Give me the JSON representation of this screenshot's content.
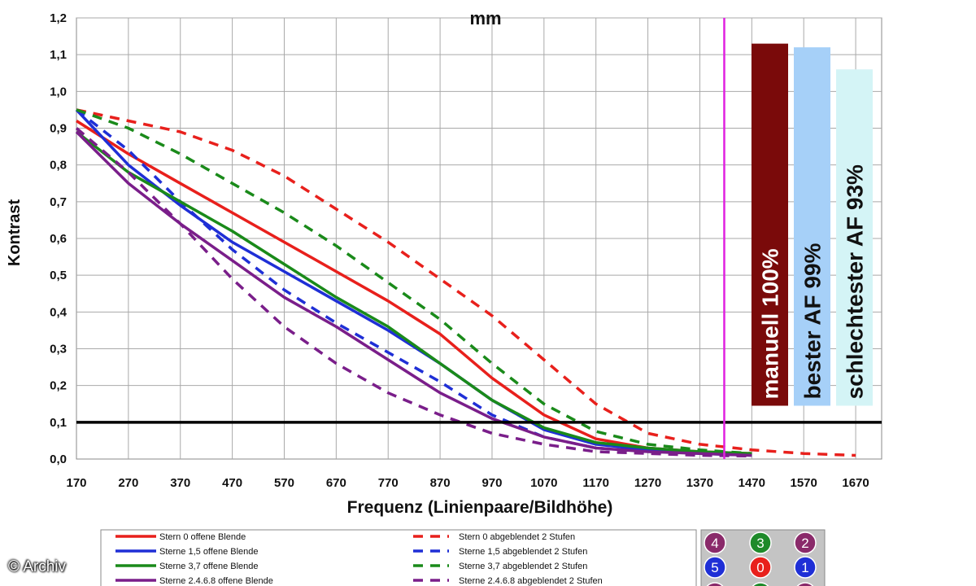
{
  "chart_data": {
    "type": "line",
    "title": "mm",
    "xlabel": "Frequenz (Linienpaare/Bildhöhe)",
    "ylabel": "Kontrast",
    "xlim": [
      170,
      1720
    ],
    "ylim": [
      0,
      1.2
    ],
    "x_ticks": [
      "170",
      "270",
      "370",
      "470",
      "570",
      "670",
      "770",
      "870",
      "970",
      "1070",
      "1170",
      "1270",
      "1370",
      "1470",
      "1570",
      "1670"
    ],
    "y_ticks": [
      "0,0",
      "0,1",
      "0,2",
      "0,3",
      "0,4",
      "0,5",
      "0,6",
      "0,7",
      "0,8",
      "0,9",
      "1,0",
      "1,1",
      "1,2"
    ],
    "grid": true,
    "threshold": {
      "y": 0.1,
      "color": "#000000"
    },
    "marker_line": {
      "x": 1417,
      "color": "#e020e0"
    },
    "colors": {
      "red": "#e8201c",
      "blue": "#1f2fd6",
      "green": "#1a8a1a",
      "purple": "#7a1e8a"
    },
    "series": [
      {
        "name": "Stern 0 offene Blende",
        "color": "#e8201c",
        "dashed": false,
        "x": [
          170,
          270,
          370,
          470,
          570,
          670,
          770,
          870,
          970,
          1070,
          1170,
          1270,
          1370,
          1470
        ],
        "y": [
          0.92,
          0.83,
          0.75,
          0.67,
          0.59,
          0.51,
          0.43,
          0.34,
          0.22,
          0.12,
          0.055,
          0.03,
          0.02,
          0.015
        ]
      },
      {
        "name": "Stern 0 abgeblendet 2 Stufen",
        "color": "#e8201c",
        "dashed": true,
        "x": [
          170,
          270,
          370,
          470,
          570,
          670,
          770,
          870,
          970,
          1070,
          1170,
          1270,
          1370,
          1470,
          1570,
          1670
        ],
        "y": [
          0.95,
          0.92,
          0.89,
          0.84,
          0.77,
          0.68,
          0.59,
          0.49,
          0.39,
          0.27,
          0.15,
          0.07,
          0.04,
          0.025,
          0.015,
          0.01
        ]
      },
      {
        "name": "Sterne 1,5 offene Blende",
        "color": "#1f2fd6",
        "dashed": false,
        "x": [
          170,
          270,
          370,
          470,
          570,
          670,
          770,
          870,
          970,
          1070,
          1170,
          1270,
          1370,
          1470
        ],
        "y": [
          0.95,
          0.8,
          0.69,
          0.59,
          0.51,
          0.43,
          0.35,
          0.26,
          0.16,
          0.08,
          0.04,
          0.025,
          0.015,
          0.01
        ]
      },
      {
        "name": "Sterne 1,5 abgeblendet 2 Stufen",
        "color": "#1f2fd6",
        "dashed": true,
        "x": [
          170,
          270,
          370,
          470,
          570,
          670,
          770,
          870,
          970,
          1070,
          1170,
          1270,
          1370,
          1470
        ],
        "y": [
          0.95,
          0.84,
          0.7,
          0.57,
          0.46,
          0.37,
          0.29,
          0.21,
          0.12,
          0.06,
          0.03,
          0.02,
          0.015,
          0.01
        ]
      },
      {
        "name": "Sterne 3,7 offene Blende",
        "color": "#1a8a1a",
        "dashed": false,
        "x": [
          170,
          270,
          370,
          470,
          570,
          670,
          770,
          870,
          970,
          1070,
          1170,
          1270,
          1370,
          1470
        ],
        "y": [
          0.89,
          0.78,
          0.7,
          0.62,
          0.53,
          0.44,
          0.36,
          0.26,
          0.16,
          0.085,
          0.045,
          0.03,
          0.02,
          0.015
        ]
      },
      {
        "name": "Sterne 3,7 abgeblendet 2 Stufen",
        "color": "#1a8a1a",
        "dashed": true,
        "x": [
          170,
          270,
          370,
          470,
          570,
          670,
          770,
          870,
          970,
          1070,
          1170,
          1270,
          1370,
          1470
        ],
        "y": [
          0.95,
          0.9,
          0.83,
          0.75,
          0.67,
          0.58,
          0.48,
          0.38,
          0.26,
          0.15,
          0.075,
          0.04,
          0.025,
          0.015
        ]
      },
      {
        "name": "Sterne 2.4.6.8 offene Blende",
        "color": "#7a1e8a",
        "dashed": false,
        "x": [
          170,
          270,
          370,
          470,
          570,
          670,
          770,
          870,
          970,
          1070,
          1170,
          1270,
          1370,
          1470
        ],
        "y": [
          0.89,
          0.75,
          0.64,
          0.54,
          0.44,
          0.36,
          0.27,
          0.18,
          0.11,
          0.06,
          0.03,
          0.02,
          0.015,
          0.01
        ]
      },
      {
        "name": "Sterne 2.4.6.8 abgeblendet 2 Stufen",
        "color": "#7a1e8a",
        "dashed": true,
        "x": [
          170,
          270,
          370,
          470,
          570,
          670,
          770,
          870,
          970,
          1070,
          1170,
          1270,
          1370,
          1470
        ],
        "y": [
          0.9,
          0.78,
          0.64,
          0.49,
          0.36,
          0.26,
          0.18,
          0.12,
          0.07,
          0.04,
          0.02,
          0.015,
          0.01,
          0.008
        ]
      }
    ],
    "annotations": [
      {
        "label": "manuell 100%",
        "value": 1.13,
        "color": "#7a0a0a",
        "text_color": "#ffffff"
      },
      {
        "label": "bester AF 99%",
        "value": 1.12,
        "color": "#a6d0f8",
        "text_color": "#111111"
      },
      {
        "label": "schlechtester AF 93%",
        "value": 1.06,
        "color": "#d4f4f6",
        "text_color": "#111111"
      }
    ],
    "star_grid": [
      {
        "label": "4",
        "color": "#8a2a6a"
      },
      {
        "label": "3",
        "color": "#1e8a2a"
      },
      {
        "label": "2",
        "color": "#8a2a6a"
      },
      {
        "label": "5",
        "color": "#1f2fd6"
      },
      {
        "label": "0",
        "color": "#e8201c"
      },
      {
        "label": "1",
        "color": "#1f2fd6"
      }
    ]
  },
  "copyright": "© Archiv"
}
